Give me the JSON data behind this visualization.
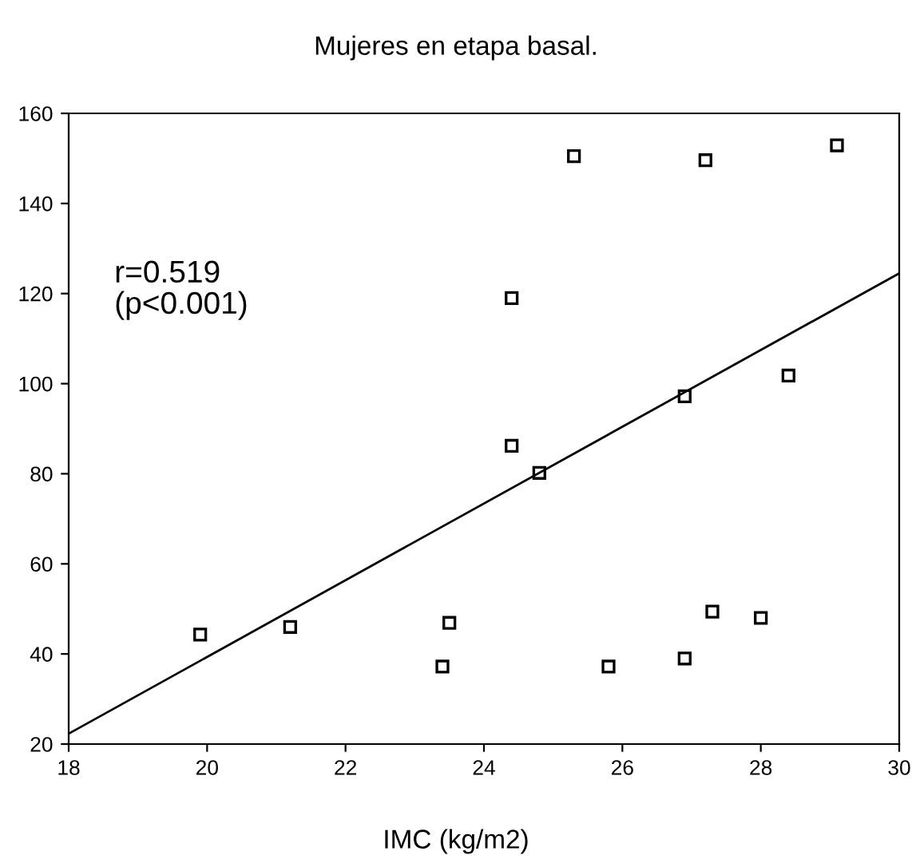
{
  "chart_data": {
    "type": "scatter",
    "title": "Mujeres en etapa basal.",
    "xlabel": "IMC (kg/m2)",
    "xlim": [
      18,
      30
    ],
    "xticks": [
      18,
      20,
      22,
      24,
      26,
      28,
      30
    ],
    "ylim": [
      20,
      160
    ],
    "yticks": [
      20,
      40,
      60,
      80,
      100,
      120,
      140,
      160
    ],
    "grid": false,
    "marker": "square",
    "annotations": [
      "r=0.519\n(p<0.001)"
    ],
    "series": [
      {
        "color": "#000000",
        "x": [
          19.9,
          21.2,
          23.4,
          23.5,
          24.4,
          24.8,
          25.8,
          26.9,
          27.3,
          28.0,
          25.3,
          27.2,
          29.1,
          24.4,
          26.9,
          28.4
        ],
        "values": [
          44.3,
          46.0,
          37.2,
          46.9,
          86.2,
          80.2,
          37.2,
          39.0,
          49.4,
          48.0,
          150.5,
          149.6,
          152.9,
          119.0,
          97.2,
          101.8
        ]
      },
      {
        "type": "line",
        "color": "#000000",
        "marker": "none",
        "line_style": "solid",
        "x": [
          18,
          30
        ],
        "values": [
          22.3,
          124.5
        ]
      }
    ]
  }
}
